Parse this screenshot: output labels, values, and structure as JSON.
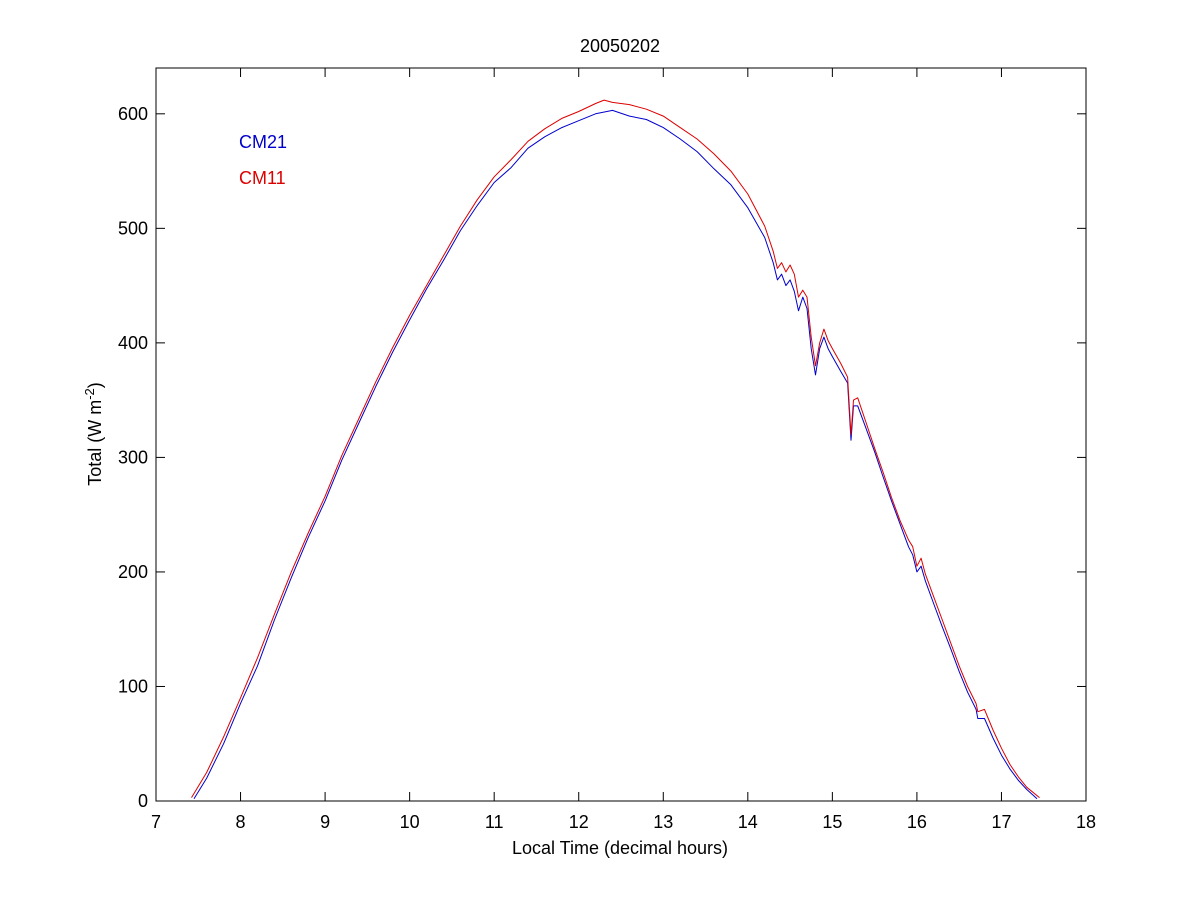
{
  "chart_data": {
    "type": "line",
    "title": "20050202",
    "xlabel": "Local Time (decimal hours)",
    "ylabel": "Total (W m",
    "ylabel_sup": "-2",
    "ylabel_end": ")",
    "xlim": [
      7,
      18
    ],
    "ylim": [
      0,
      640
    ],
    "xticks": [
      7,
      8,
      9,
      10,
      11,
      12,
      13,
      14,
      15,
      16,
      17,
      18
    ],
    "yticks": [
      0,
      100,
      200,
      300,
      400,
      500,
      600
    ],
    "grid": false,
    "legend_position": "top-left",
    "series": [
      {
        "name": "CM21",
        "color": "#0000cc",
        "points": [
          [
            7.45,
            2
          ],
          [
            7.6,
            20
          ],
          [
            7.8,
            50
          ],
          [
            8.0,
            85
          ],
          [
            8.2,
            118
          ],
          [
            8.4,
            158
          ],
          [
            8.6,
            195
          ],
          [
            8.8,
            230
          ],
          [
            9.0,
            262
          ],
          [
            9.2,
            298
          ],
          [
            9.4,
            330
          ],
          [
            9.6,
            362
          ],
          [
            9.8,
            392
          ],
          [
            10.0,
            420
          ],
          [
            10.2,
            447
          ],
          [
            10.4,
            472
          ],
          [
            10.6,
            498
          ],
          [
            10.8,
            520
          ],
          [
            11.0,
            540
          ],
          [
            11.2,
            553
          ],
          [
            11.4,
            570
          ],
          [
            11.6,
            580
          ],
          [
            11.8,
            588
          ],
          [
            12.0,
            594
          ],
          [
            12.2,
            600
          ],
          [
            12.4,
            603
          ],
          [
            12.6,
            598
          ],
          [
            12.8,
            595
          ],
          [
            13.0,
            588
          ],
          [
            13.2,
            578
          ],
          [
            13.4,
            567
          ],
          [
            13.6,
            552
          ],
          [
            13.8,
            538
          ],
          [
            14.0,
            518
          ],
          [
            14.2,
            492
          ],
          [
            14.3,
            470
          ],
          [
            14.35,
            455
          ],
          [
            14.4,
            460
          ],
          [
            14.45,
            450
          ],
          [
            14.5,
            455
          ],
          [
            14.55,
            445
          ],
          [
            14.6,
            428
          ],
          [
            14.65,
            440
          ],
          [
            14.7,
            430
          ],
          [
            14.75,
            395
          ],
          [
            14.8,
            372
          ],
          [
            14.85,
            395
          ],
          [
            14.9,
            405
          ],
          [
            14.95,
            395
          ],
          [
            15.0,
            388
          ],
          [
            15.1,
            375
          ],
          [
            15.18,
            365
          ],
          [
            15.22,
            315
          ],
          [
            15.25,
            345
          ],
          [
            15.3,
            345
          ],
          [
            15.4,
            325
          ],
          [
            15.5,
            305
          ],
          [
            15.6,
            283
          ],
          [
            15.7,
            262
          ],
          [
            15.8,
            242
          ],
          [
            15.9,
            222
          ],
          [
            15.95,
            215
          ],
          [
            16.0,
            200
          ],
          [
            16.05,
            205
          ],
          [
            16.1,
            192
          ],
          [
            16.2,
            172
          ],
          [
            16.3,
            152
          ],
          [
            16.4,
            133
          ],
          [
            16.5,
            113
          ],
          [
            16.6,
            95
          ],
          [
            16.7,
            80
          ],
          [
            16.72,
            72
          ],
          [
            16.8,
            72
          ],
          [
            16.9,
            55
          ],
          [
            17.0,
            40
          ],
          [
            17.1,
            28
          ],
          [
            17.2,
            18
          ],
          [
            17.3,
            10
          ],
          [
            17.42,
            2
          ]
        ]
      },
      {
        "name": "CM11",
        "color": "#dd0000",
        "points": [
          [
            7.42,
            3
          ],
          [
            7.6,
            25
          ],
          [
            7.8,
            56
          ],
          [
            8.0,
            90
          ],
          [
            8.2,
            125
          ],
          [
            8.4,
            163
          ],
          [
            8.6,
            200
          ],
          [
            8.8,
            234
          ],
          [
            9.0,
            266
          ],
          [
            9.2,
            302
          ],
          [
            9.4,
            334
          ],
          [
            9.6,
            366
          ],
          [
            9.8,
            396
          ],
          [
            10.0,
            424
          ],
          [
            10.2,
            450
          ],
          [
            10.4,
            476
          ],
          [
            10.6,
            502
          ],
          [
            10.8,
            525
          ],
          [
            11.0,
            545
          ],
          [
            11.2,
            560
          ],
          [
            11.4,
            576
          ],
          [
            11.6,
            587
          ],
          [
            11.8,
            596
          ],
          [
            12.0,
            602
          ],
          [
            12.2,
            609
          ],
          [
            12.3,
            612
          ],
          [
            12.4,
            610
          ],
          [
            12.6,
            608
          ],
          [
            12.8,
            604
          ],
          [
            13.0,
            598
          ],
          [
            13.2,
            588
          ],
          [
            13.4,
            578
          ],
          [
            13.6,
            565
          ],
          [
            13.8,
            550
          ],
          [
            14.0,
            530
          ],
          [
            14.2,
            502
          ],
          [
            14.3,
            480
          ],
          [
            14.35,
            465
          ],
          [
            14.4,
            470
          ],
          [
            14.45,
            462
          ],
          [
            14.5,
            468
          ],
          [
            14.55,
            460
          ],
          [
            14.6,
            440
          ],
          [
            14.65,
            446
          ],
          [
            14.7,
            440
          ],
          [
            14.75,
            405
          ],
          [
            14.8,
            380
          ],
          [
            14.85,
            400
          ],
          [
            14.9,
            412
          ],
          [
            14.95,
            402
          ],
          [
            15.0,
            395
          ],
          [
            15.1,
            382
          ],
          [
            15.18,
            370
          ],
          [
            15.22,
            320
          ],
          [
            15.25,
            350
          ],
          [
            15.3,
            352
          ],
          [
            15.4,
            330
          ],
          [
            15.5,
            308
          ],
          [
            15.6,
            287
          ],
          [
            15.7,
            265
          ],
          [
            15.8,
            245
          ],
          [
            15.9,
            228
          ],
          [
            15.95,
            222
          ],
          [
            16.0,
            205
          ],
          [
            16.05,
            212
          ],
          [
            16.1,
            198
          ],
          [
            16.2,
            178
          ],
          [
            16.3,
            158
          ],
          [
            16.4,
            138
          ],
          [
            16.5,
            118
          ],
          [
            16.6,
            100
          ],
          [
            16.7,
            85
          ],
          [
            16.72,
            78
          ],
          [
            16.8,
            80
          ],
          [
            16.9,
            62
          ],
          [
            17.0,
            46
          ],
          [
            17.1,
            32
          ],
          [
            17.2,
            21
          ],
          [
            17.3,
            12
          ],
          [
            17.45,
            3
          ]
        ]
      }
    ]
  }
}
